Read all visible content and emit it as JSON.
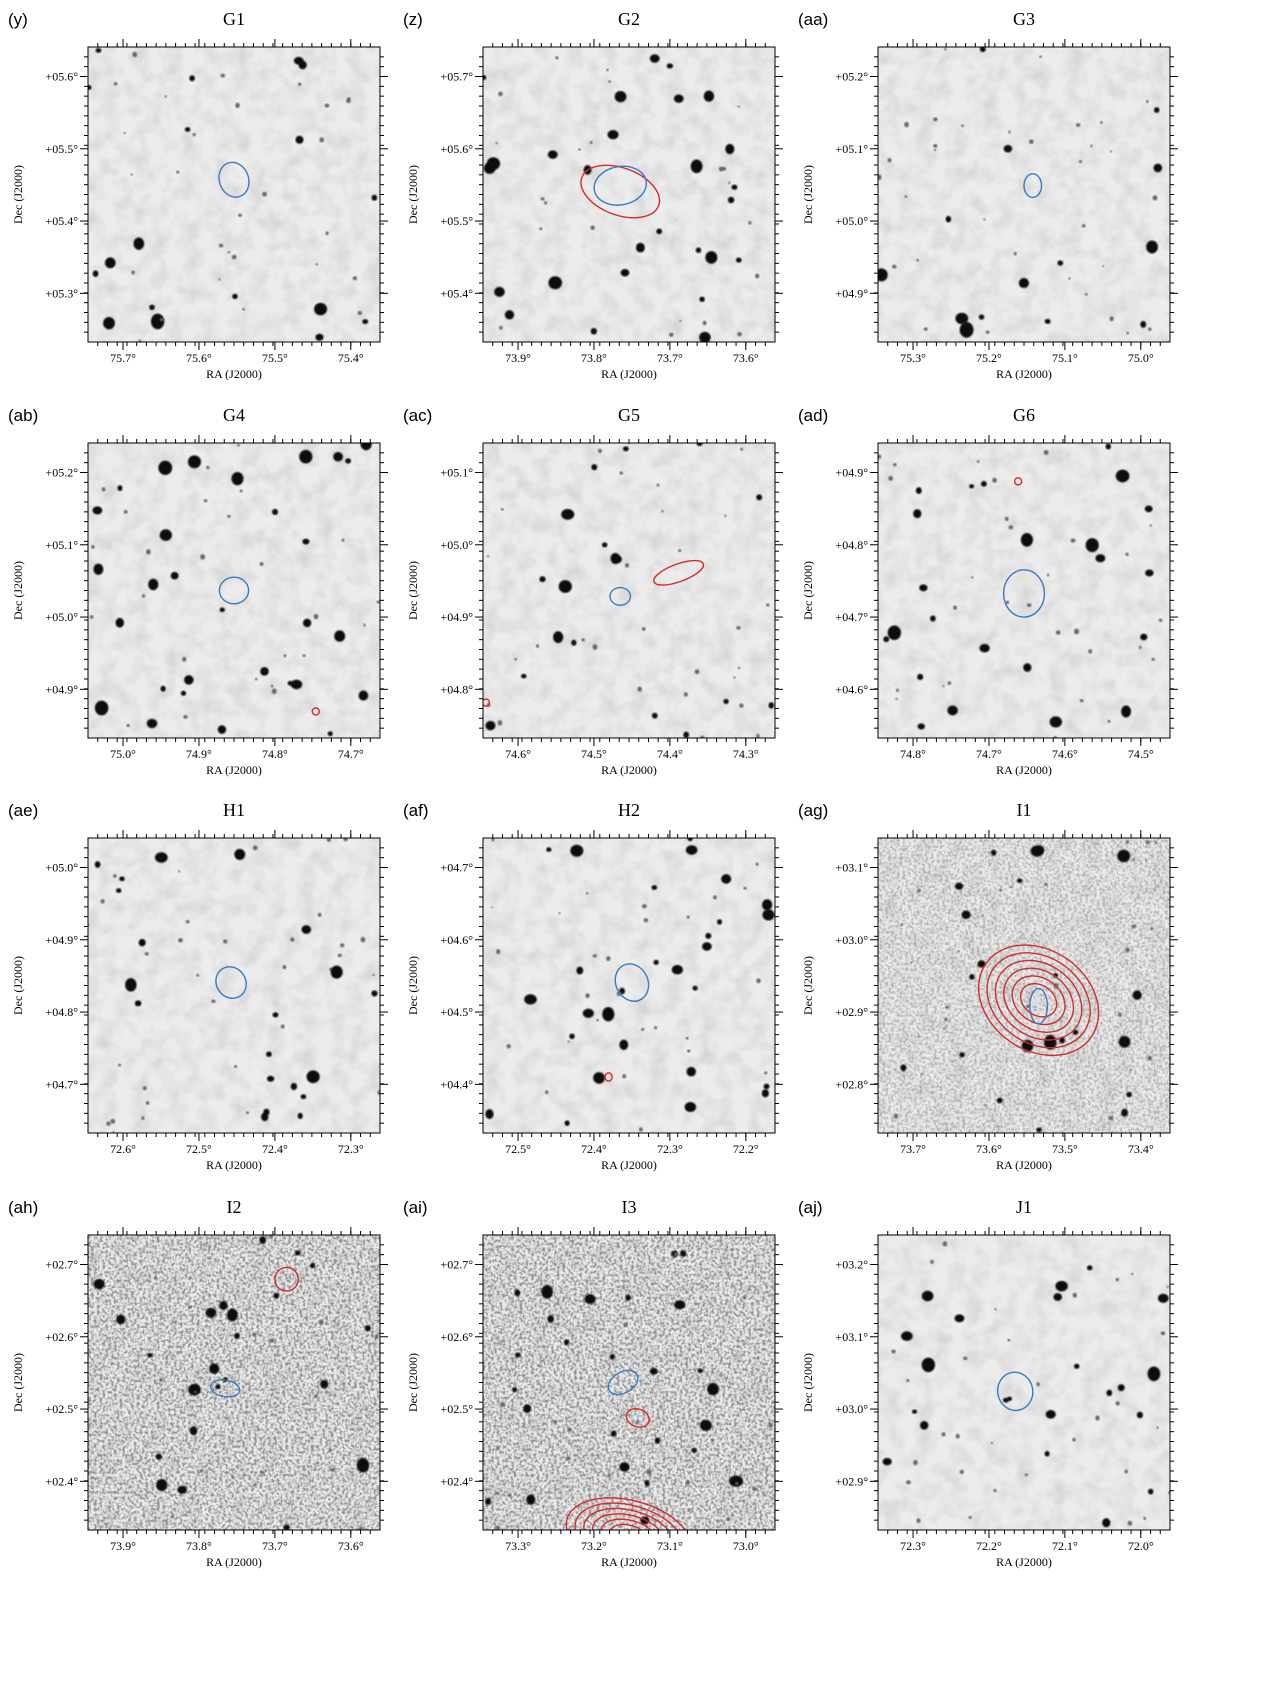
{
  "axis_labels": {
    "x": "RA (J2000)",
    "y": "Dec (J2000)"
  },
  "panels": [
    {
      "label": "(y)",
      "title": "G1",
      "yticks": [
        "+05.6°",
        "+05.5°",
        "+05.4°",
        "+05.3°"
      ],
      "xticks": [
        "75.7°",
        "75.6°",
        "75.5°",
        "75.4°"
      ]
    },
    {
      "label": "(z)",
      "title": "G2",
      "yticks": [
        "+05.7°",
        "+05.6°",
        "+05.5°",
        "+05.4°"
      ],
      "xticks": [
        "73.9°",
        "73.8°",
        "73.7°",
        "73.6°"
      ]
    },
    {
      "label": "(aa)",
      "title": "G3",
      "yticks": [
        "+05.2°",
        "+05.1°",
        "+05.0°",
        "+04.9°"
      ],
      "xticks": [
        "75.3°",
        "75.2°",
        "75.1°",
        "75.0°"
      ]
    },
    {
      "label": "(ab)",
      "title": "G4",
      "yticks": [
        "+05.2°",
        "+05.1°",
        "+05.0°",
        "+04.9°"
      ],
      "xticks": [
        "75.0°",
        "74.9°",
        "74.8°",
        "74.7°"
      ]
    },
    {
      "label": "(ac)",
      "title": "G5",
      "yticks": [
        "+05.1°",
        "+05.0°",
        "+04.9°",
        "+04.8°"
      ],
      "xticks": [
        "74.6°",
        "74.5°",
        "74.4°",
        "74.3°"
      ]
    },
    {
      "label": "(ad)",
      "title": "G6",
      "yticks": [
        "+04.9°",
        "+04.8°",
        "+04.7°",
        "+04.6°"
      ],
      "xticks": [
        "74.8°",
        "74.7°",
        "74.6°",
        "74.5°"
      ]
    },
    {
      "label": "(ae)",
      "title": "H1",
      "yticks": [
        "+05.0°",
        "+04.9°",
        "+04.8°",
        "+04.7°"
      ],
      "xticks": [
        "72.6°",
        "72.5°",
        "72.4°",
        "72.3°"
      ]
    },
    {
      "label": "(af)",
      "title": "H2",
      "yticks": [
        "+04.7°",
        "+04.6°",
        "+04.5°",
        "+04.4°"
      ],
      "xticks": [
        "72.5°",
        "72.4°",
        "72.3°",
        "72.2°"
      ]
    },
    {
      "label": "(ag)",
      "title": "I1",
      "yticks": [
        "+03.1°",
        "+03.0°",
        "+02.9°",
        "+02.8°"
      ],
      "xticks": [
        "73.7°",
        "73.6°",
        "73.5°",
        "73.4°"
      ]
    },
    {
      "label": "(ah)",
      "title": "I2",
      "yticks": [
        "+02.7°",
        "+02.6°",
        "+02.5°",
        "+02.4°"
      ],
      "xticks": [
        "73.9°",
        "73.8°",
        "73.7°",
        "73.6°"
      ]
    },
    {
      "label": "(ai)",
      "title": "I3",
      "yticks": [
        "+02.7°",
        "+02.6°",
        "+02.5°",
        "+02.4°"
      ],
      "xticks": [
        "73.3°",
        "73.2°",
        "73.1°",
        "73.0°"
      ]
    },
    {
      "label": "(aj)",
      "title": "J1",
      "yticks": [
        "+03.2°",
        "+03.1°",
        "+03.0°",
        "+02.9°"
      ],
      "xticks": [
        "72.3°",
        "72.2°",
        "72.1°",
        "72.0°"
      ]
    }
  ]
}
